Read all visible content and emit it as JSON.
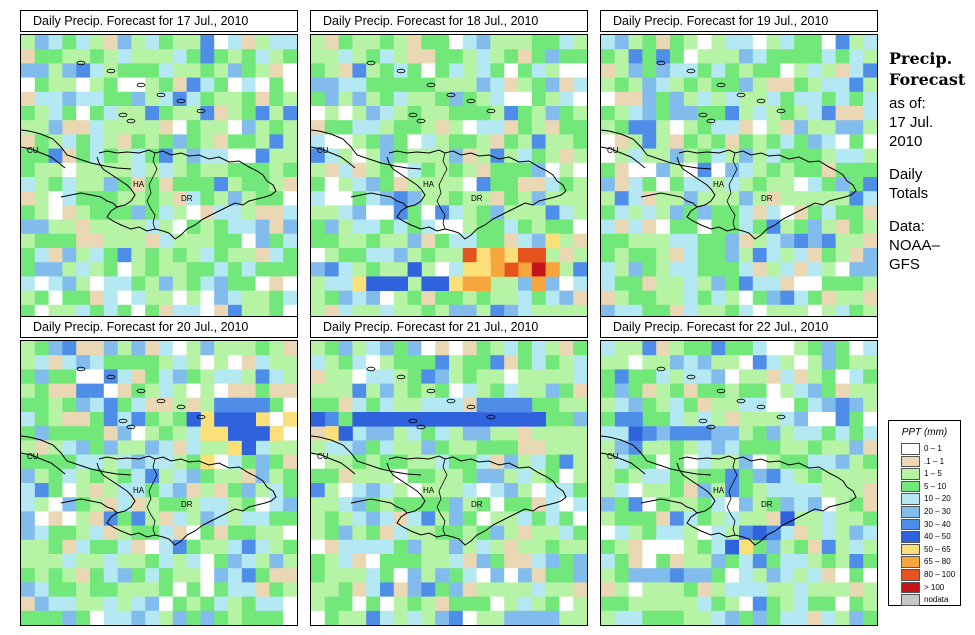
{
  "panels": [
    {
      "title": "Daily Precip. Forecast for  17 Jul., 2010",
      "labels": {
        "cu": "CU",
        "ha": "HA",
        "dr": "DR"
      }
    },
    {
      "title": "Daily Precip. Forecast for  18 Jul., 2010",
      "labels": {
        "cu": "CU",
        "ha": "HA",
        "dr": "DR"
      }
    },
    {
      "title": "Daily Precip. Forecast for  19 Jul., 2010",
      "labels": {
        "cu": "CU",
        "ha": "HA",
        "dr": "DR"
      }
    },
    {
      "title": "Daily Precip. Forecast for  20 Jul., 2010",
      "labels": {
        "cu": "CU",
        "ha": "HA",
        "dr": "DR"
      }
    },
    {
      "title": "Daily Precip. Forecast for  21 Jul., 2010",
      "labels": {
        "cu": "CU",
        "ha": "HA",
        "dr": "DR"
      }
    },
    {
      "title": "Daily Precip. Forecast for  22 Jul., 2010",
      "labels": {
        "cu": "CU",
        "ha": "HA",
        "dr": "DR"
      }
    }
  ],
  "sidebar": {
    "title_line1": "Precip.",
    "title_line2": "Forecast",
    "asof_label": "as of:",
    "date_line1": "17 Jul.",
    "date_line2": "2010",
    "totals_line1": "Daily",
    "totals_line2": "Totals",
    "data_line1": "Data:",
    "data_line2": "NOAA–",
    "data_line3": "GFS"
  },
  "legend": {
    "title": "PPT (mm)",
    "items": [
      {
        "label": "0 – 1",
        "color": "#ffffff"
      },
      {
        "label": ".1 – 1",
        "color": "#ead7b4"
      },
      {
        "label": "1 – 5",
        "color": "#b6f3a4"
      },
      {
        "label": "5 – 10",
        "color": "#72e87a"
      },
      {
        "label": "10 – 20",
        "color": "#b4e9f4"
      },
      {
        "label": "20 – 30",
        "color": "#82bcec"
      },
      {
        "label": "30 – 40",
        "color": "#4f8ee8"
      },
      {
        "label": "40 – 50",
        "color": "#2f62dd"
      },
      {
        "label": "50 – 65",
        "color": "#fbe07a"
      },
      {
        "label": "65 – 80",
        "color": "#f6a63c"
      },
      {
        "label": "80 – 100",
        "color": "#e5541f"
      },
      {
        "label": "> 100",
        "color": "#c4141a"
      },
      {
        "label": "nodata",
        "color": "#c8c8c8"
      }
    ]
  }
}
